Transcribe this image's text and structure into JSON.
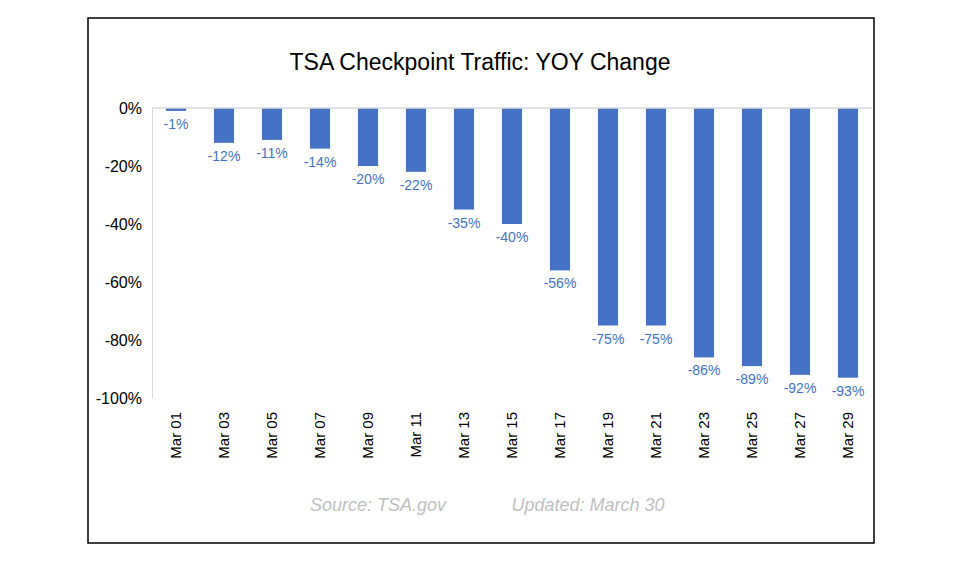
{
  "chart_data": {
    "type": "bar",
    "title": "TSA Checkpoint Traffic: YOY Change",
    "categories": [
      "Mar 01",
      "Mar 03",
      "Mar 05",
      "Mar 07",
      "Mar 09",
      "Mar 11",
      "Mar 13",
      "Mar 15",
      "Mar 17",
      "Mar 19",
      "Mar 21",
      "Mar 23",
      "Mar 25",
      "Mar 27",
      "Mar 29"
    ],
    "values": [
      -1,
      -12,
      -11,
      -14,
      -20,
      -22,
      -35,
      -40,
      -56,
      -75,
      -75,
      -86,
      -89,
      -92,
      -93
    ],
    "value_labels": [
      "-1%",
      "-12%",
      "-11%",
      "-14%",
      "-20%",
      "-22%",
      "-35%",
      "-40%",
      "-56%",
      "-75%",
      "-75%",
      "-86%",
      "-89%",
      "-92%",
      "-93%"
    ],
    "color": "#4472c4",
    "ylim": [
      -100,
      0
    ],
    "yticks": [
      {
        "value": -100,
        "label": "-100%"
      },
      {
        "value": -80,
        "label": "-80%"
      },
      {
        "value": -60,
        "label": "-60%"
      },
      {
        "value": -40,
        "label": "-40%"
      },
      {
        "value": -20,
        "label": "-20%"
      },
      {
        "value": 0,
        "label": "0%"
      }
    ],
    "grid": false,
    "data_labels": true,
    "annotations": [
      "Source: TSA.gov",
      "Updated: March 30"
    ]
  }
}
